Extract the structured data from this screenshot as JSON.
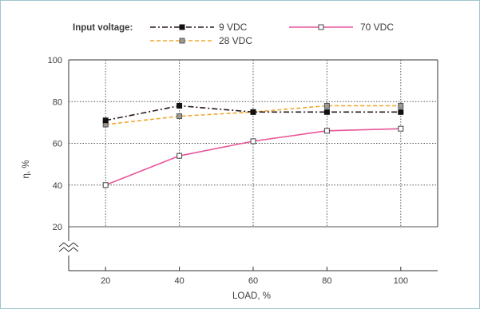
{
  "chart_data": {
    "type": "line",
    "legend_title": "Input voltage:",
    "categories": [
      "20",
      "40",
      "60",
      "80",
      "100"
    ],
    "x": [
      20,
      40,
      60,
      80,
      100
    ],
    "series": [
      {
        "name": "9 VDC",
        "values": [
          71,
          78,
          75,
          75,
          75
        ],
        "color": "#2b1a1a",
        "style": "dash-dot",
        "marker": "filled-square"
      },
      {
        "name": "70 VDC",
        "values": [
          40,
          54,
          61,
          66,
          67
        ],
        "color": "#e8559a",
        "style": "solid",
        "marker": "hollow-square"
      },
      {
        "name": "28 VDC",
        "values": [
          69,
          73,
          75,
          78,
          78
        ],
        "color": "#f0a830",
        "style": "dashed",
        "marker": "gray-square"
      }
    ],
    "xlabel": "LOAD, %",
    "ylabel": "η, %",
    "yticks": [
      "20",
      "40",
      "60",
      "80",
      "100"
    ],
    "ylim": [
      20,
      100
    ],
    "xlim": [
      10,
      110
    ],
    "grid": "horizontal dotted, vertical dotted",
    "axis_break": true,
    "legend_position": "top"
  }
}
